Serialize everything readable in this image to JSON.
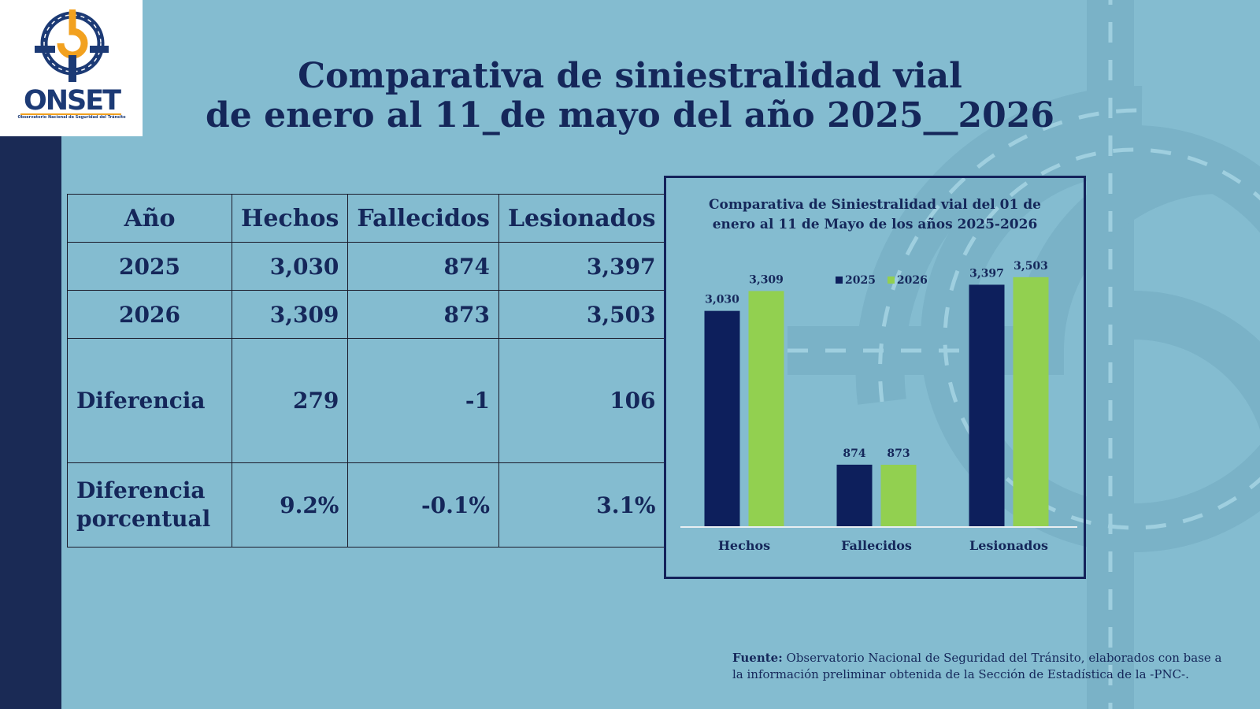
{
  "logo": {
    "name": "ONSET",
    "subtitle": "Observatorio Nacional de Seguridad del Tránsito"
  },
  "title": {
    "line1": "Comparativa de siniestralidad vial",
    "line2": "de enero al 11_de mayo del año 2025__2026"
  },
  "table": {
    "headers": [
      "Año",
      "Hechos",
      "Fallecidos",
      "Lesionados"
    ],
    "rows": [
      {
        "label": "2025",
        "hechos": "3,030",
        "fallecidos": "874",
        "lesionados": "3,397"
      },
      {
        "label": "2026",
        "hechos": "3,309",
        "fallecidos": "873",
        "lesionados": "3,503"
      },
      {
        "label": "Diferencia",
        "hechos": "279",
        "fallecidos": "-1",
        "lesionados": "106"
      },
      {
        "label_line1": "Diferencia",
        "label_line2": "porcentual",
        "hechos": "9.2%",
        "fallecidos": "-0.1%",
        "lesionados": "3.1%"
      }
    ]
  },
  "chart_data": {
    "type": "bar",
    "title": "Comparativa de Siniestralidad vial del 01 de enero al 11 de Mayo de los años 2025-2026",
    "title_line1": "Comparativa de Siniestralidad vial del 01 de",
    "title_line2": "enero al 11 de Mayo de los años 2025-2026",
    "categories": [
      "Hechos",
      "Fallecidos",
      "Lesionados"
    ],
    "series": [
      {
        "name": "2025",
        "values": [
          3030,
          874,
          3397
        ],
        "labels": [
          "3,030",
          "874",
          "3,397"
        ],
        "color": "#0d1f5c"
      },
      {
        "name": "2026",
        "values": [
          3309,
          873,
          3503
        ],
        "labels": [
          "3,309",
          "873",
          "3,503"
        ],
        "color": "#92d050"
      }
    ],
    "ylim": [
      0,
      3700
    ],
    "grid": false,
    "legend_position": "top-center"
  },
  "footnote": {
    "label": "Fuente:",
    "text": " Observatorio Nacional de Seguridad del Tránsito, elaborados con base a la información preliminar obtenida de la Sección de Estadística de la -PNC-."
  },
  "colors": {
    "background": "#84bcd0",
    "navy": "#15275a",
    "green": "#92d050"
  }
}
